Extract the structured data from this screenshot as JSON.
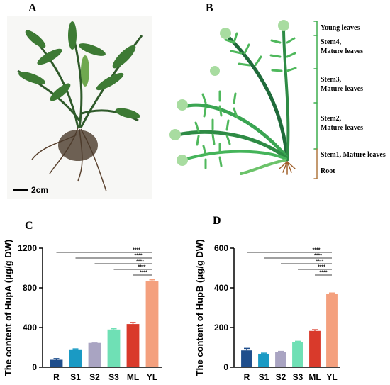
{
  "panel_labels": [
    "A",
    "B",
    "C",
    "D"
  ],
  "scale_bar": "2cm",
  "diagram": {
    "labels": [
      [
        "Young leaves"
      ],
      [
        "Stem4,",
        "Mature leaves"
      ],
      [
        "Stem3,",
        "Mature leaves"
      ],
      [
        "Stem2,",
        "Mature leaves"
      ],
      [
        "Stem1, Mature leaves"
      ],
      [
        "Root"
      ]
    ]
  },
  "chart_data": [
    {
      "type": "bar",
      "y_label": "The content of HupA (μg/g DW)",
      "categories": [
        "R",
        "S1",
        "S2",
        "S3",
        "ML",
        "YL"
      ],
      "values": [
        75,
        180,
        245,
        380,
        435,
        865
      ],
      "errors": [
        12,
        5,
        5,
        8,
        15,
        15
      ],
      "colors": [
        "#1f4e8c",
        "#1a9ac4",
        "#a9a4c2",
        "#6fe0b5",
        "#d93a2b",
        "#f4a07e"
      ],
      "ylim": [
        0,
        1200
      ],
      "yticks": [
        0,
        400,
        800,
        1200
      ],
      "grid": false,
      "annotations": [
        "****",
        "****",
        "****",
        "****",
        "****"
      ]
    },
    {
      "type": "bar",
      "y_label": "The content of HupB (μg/g DW)",
      "categories": [
        "R",
        "S1",
        "S2",
        "S3",
        "ML",
        "YL"
      ],
      "values": [
        85,
        68,
        75,
        128,
        183,
        370
      ],
      "errors": [
        10,
        3,
        5,
        3,
        6,
        4
      ],
      "colors": [
        "#1f4e8c",
        "#1a9ac4",
        "#a9a4c2",
        "#6fe0b5",
        "#d93a2b",
        "#f4a07e"
      ],
      "ylim": [
        0,
        600
      ],
      "yticks": [
        0,
        200,
        400,
        600
      ],
      "grid": false,
      "annotations": [
        "****",
        "****",
        "****",
        "****",
        "****"
      ]
    }
  ]
}
